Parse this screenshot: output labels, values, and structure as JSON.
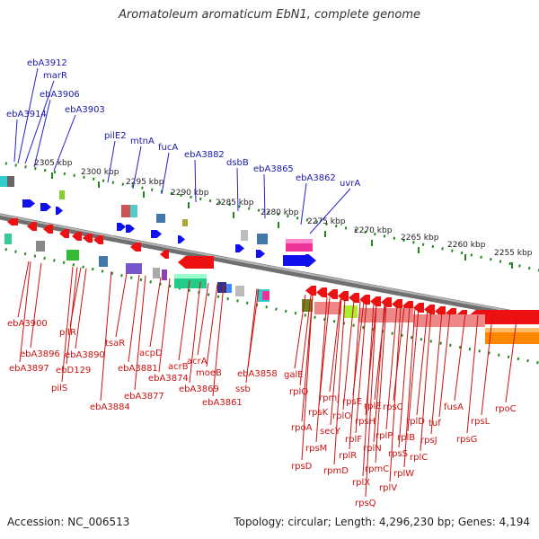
{
  "title": "Aromatoleum aromaticum EbN1, complete genome",
  "footer": {
    "accession": "Accession: NC_006513",
    "summary": "Topology: circular; Length: 4,296,230 bp; Genes: 4,194"
  },
  "colors": {
    "forward_label": "#1a1aaa",
    "reverse_label": "#cc1111",
    "backbone": "#888888",
    "tick": "#228822"
  },
  "ticks": [
    "2305 kbp",
    "2300 kbp",
    "2295 kbp",
    "2290 kbp",
    "2285 kbp",
    "2280 kbp",
    "2275 kbp",
    "2270 kbp",
    "2265 kbp",
    "2260 kbp",
    "2255 kbp"
  ],
  "upper_labels": [
    "ebA3912",
    "marR",
    "ebA3906",
    "ebA3914",
    "ebA3903",
    "pilE2",
    "mtnA",
    "fucA",
    "ebA3882",
    "dsbB",
    "ebA3865",
    "ebA3862",
    "uvrA"
  ],
  "lower_labels": [
    "ebA3900",
    "pilR",
    "ebA3896",
    "ebA3890",
    "ebA3897",
    "ebD129",
    "pilS",
    "tsaR",
    "ebA3884",
    "acpD",
    "ebA3881",
    "acrB",
    "ebA3874",
    "ebA3877",
    "acrA",
    "moeB",
    "ebA3869",
    "ebA3861",
    "ebA3858",
    "ssb",
    "galE",
    "rplQ",
    "rpoA",
    "rpsD",
    "rpmJ",
    "rpsK",
    "rpsM",
    "secY",
    "rplO",
    "rpmD",
    "rpsE",
    "rplR",
    "rplF",
    "rpsH",
    "rplE",
    "rplX",
    "rplN",
    "rpsQ",
    "rpsC",
    "rplP",
    "rpmC",
    "rplV",
    "rplD",
    "rplB",
    "rpsS",
    "rplW",
    "rplC",
    "tuf",
    "rpsJ",
    "fusA",
    "rpsG",
    "rpsL",
    "rpoC"
  ]
}
